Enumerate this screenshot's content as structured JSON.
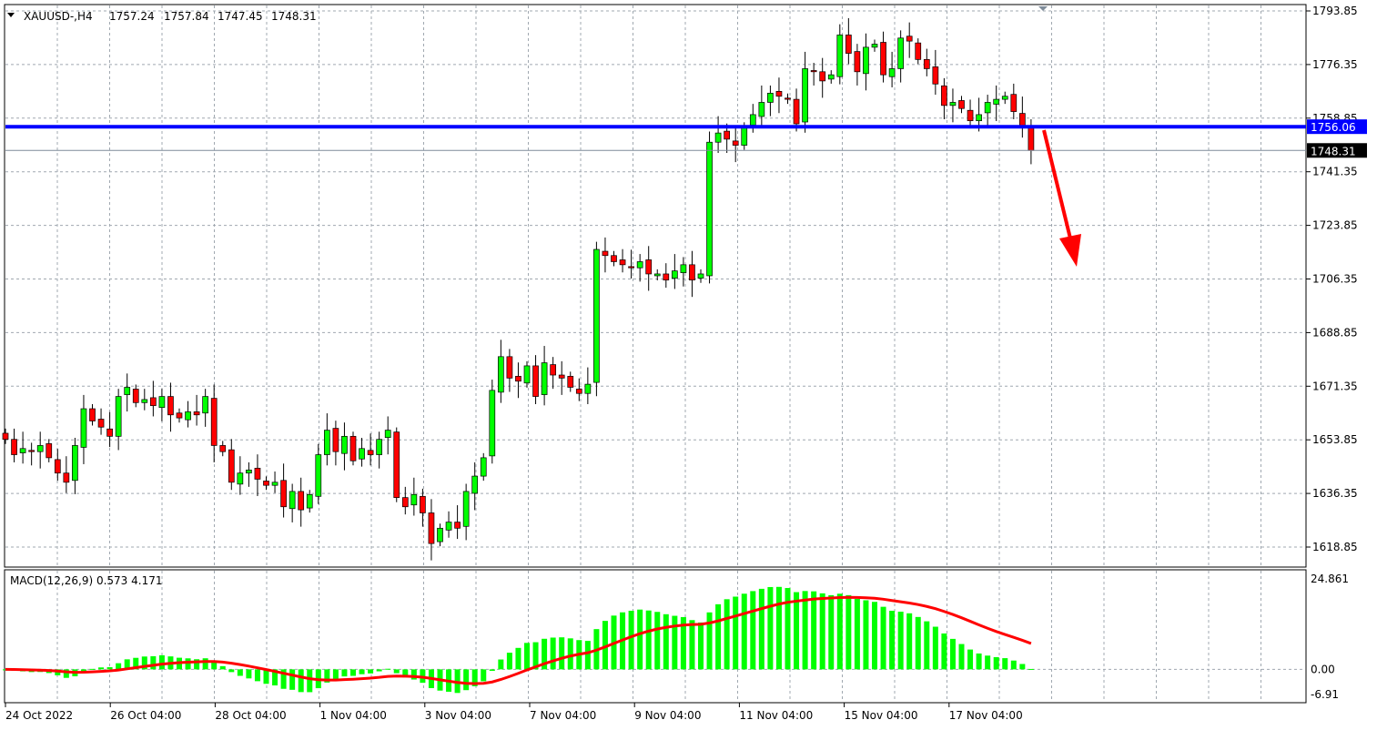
{
  "header": {
    "symbol": "XAUUSD-,H4",
    "open": "1757.24",
    "high": "1757.84",
    "low": "1747.45",
    "close": "1748.31"
  },
  "indicator": {
    "label": "MACD(12,26,9) 0.573 4.171",
    "macd_value": "0.573",
    "signal_value": "4.171"
  },
  "colors": {
    "bull": "#00ff00",
    "bear": "#ff0000",
    "outline": "#000000",
    "level_line": "#0000ff",
    "bid_line": "#7f8c9a",
    "arrow": "#ff0000",
    "histogram": "#00ff00",
    "signal": "#ff0000",
    "grid": "#a0a8b0"
  },
  "chart_data": [
    {
      "type": "candlestick",
      "timeframe": "H4",
      "ylim": [
        1612,
        1797
      ],
      "yticks": [
        "1793.85",
        "1776.35",
        "1758.85",
        "1741.35",
        "1723.85",
        "1706.35",
        "1688.85",
        "1671.35",
        "1653.85",
        "1636.35",
        "1618.85"
      ],
      "xticks": [
        "24 Oct 2022",
        "26 Oct 04:00",
        "28 Oct 04:00",
        "1 Nov 04:00",
        "3 Nov 04:00",
        "7 Nov 04:00",
        "9 Nov 04:00",
        "11 Nov 04:00",
        "15 Nov 04:00",
        "17 Nov 04:00"
      ],
      "closes": [
        1654,
        1649,
        1651,
        1650,
        1652,
        1648,
        1643,
        1640,
        1652,
        1664,
        1660,
        1658,
        1655,
        1668,
        1671,
        1666,
        1667,
        1665,
        1668,
        1662,
        1661,
        1663,
        1662,
        1668,
        1652,
        1650,
        1640,
        1643,
        1644,
        1641,
        1639,
        1640,
        1632,
        1637,
        1631,
        1636,
        1649,
        1657,
        1650,
        1655,
        1647,
        1651,
        1649,
        1654,
        1657,
        1635,
        1632,
        1636,
        1630,
        1620,
        1625,
        1627,
        1625,
        1637,
        1642,
        1648,
        1670,
        1681,
        1674,
        1673,
        1678,
        1668,
        1679,
        1675,
        1674,
        1671,
        1669,
        1672,
        1716,
        1714,
        1712,
        1711,
        1710,
        1712,
        1708,
        1708,
        1706,
        1709,
        1711,
        1706,
        1708,
        1751,
        1754,
        1752,
        1750,
        1756,
        1760,
        1764,
        1767,
        1766,
        1765,
        1757,
        1775,
        1774,
        1771,
        1773,
        1786,
        1780,
        1774,
        1782,
        1783,
        1773,
        1775,
        1785,
        1784,
        1778,
        1775,
        1770,
        1763,
        1764,
        1762,
        1758,
        1760,
        1764,
        1765,
        1766,
        1761,
        1756,
        1748.31
      ],
      "horizontal_lines": [
        {
          "price": 1756.06,
          "label": "1756.06",
          "color": "#0000ff"
        },
        {
          "price": 1748.31,
          "label": "1748.31",
          "color": "#7f8c9a"
        }
      ],
      "annotation": "red arrow pointing down"
    },
    {
      "type": "bar+line",
      "name": "MACD(12,26,9)",
      "ylim": [
        -6.91,
        24.861
      ],
      "yticks": [
        "24.861",
        "0.00",
        "-6.91"
      ],
      "last_macd": 0.573,
      "last_signal": 4.171
    }
  ]
}
